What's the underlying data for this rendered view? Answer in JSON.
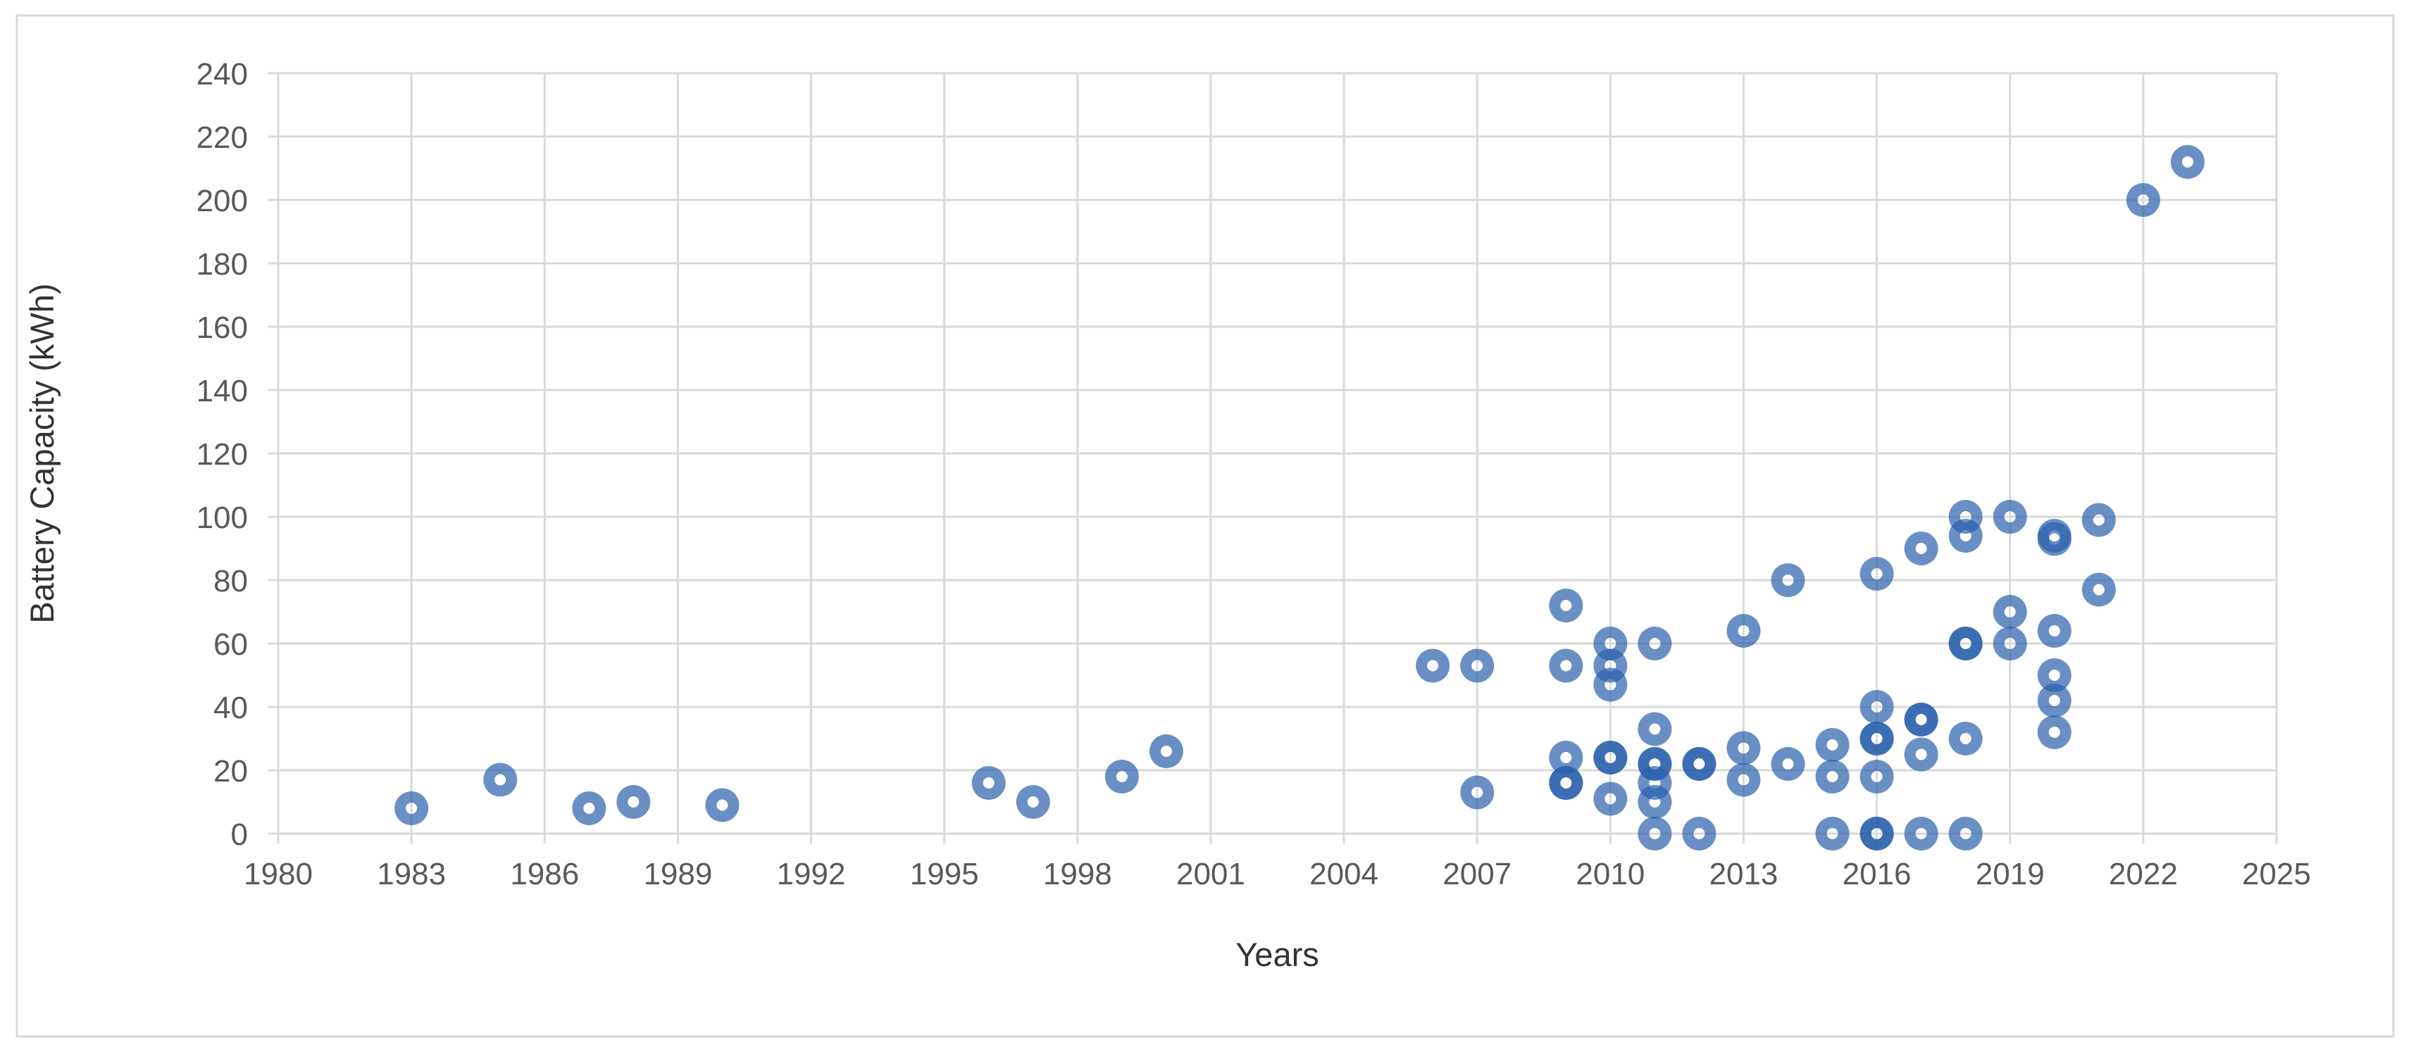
{
  "chart_data": {
    "type": "scatter",
    "title": "",
    "xlabel": "Years",
    "ylabel": "Battery Capacity (kWh)",
    "xlim": [
      1980,
      2025
    ],
    "ylim": [
      0,
      240
    ],
    "x_ticks": [
      1980,
      1983,
      1986,
      1989,
      1992,
      1995,
      1998,
      2001,
      2004,
      2007,
      2010,
      2013,
      2016,
      2019,
      2022,
      2025
    ],
    "y_ticks": [
      0,
      20,
      40,
      60,
      80,
      100,
      120,
      140,
      160,
      180,
      200,
      220,
      240
    ],
    "grid": true,
    "legend": false,
    "series_name": "Battery Capacity",
    "points": [
      [
        1983,
        8
      ],
      [
        1985,
        17
      ],
      [
        1987,
        8
      ],
      [
        1988,
        10
      ],
      [
        1990,
        9
      ],
      [
        1996,
        16
      ],
      [
        1997,
        10
      ],
      [
        1999,
        18
      ],
      [
        2000,
        26
      ],
      [
        2006,
        53
      ],
      [
        2007,
        53
      ],
      [
        2007,
        13
      ],
      [
        2009,
        72
      ],
      [
        2009,
        53
      ],
      [
        2009,
        24
      ],
      [
        2009,
        16
      ],
      [
        2009,
        16
      ],
      [
        2010,
        60
      ],
      [
        2010,
        53
      ],
      [
        2010,
        47
      ],
      [
        2010,
        24
      ],
      [
        2010,
        24
      ],
      [
        2010,
        11
      ],
      [
        2011,
        60
      ],
      [
        2011,
        33
      ],
      [
        2011,
        22
      ],
      [
        2011,
        22
      ],
      [
        2011,
        16
      ],
      [
        2011,
        10
      ],
      [
        2011,
        0
      ],
      [
        2012,
        22
      ],
      [
        2012,
        22
      ],
      [
        2012,
        0
      ],
      [
        2013,
        64
      ],
      [
        2013,
        27
      ],
      [
        2013,
        17
      ],
      [
        2014,
        80
      ],
      [
        2014,
        22
      ],
      [
        2015,
        28
      ],
      [
        2015,
        18
      ],
      [
        2015,
        0
      ],
      [
        2016,
        82
      ],
      [
        2016,
        40
      ],
      [
        2016,
        30
      ],
      [
        2016,
        30
      ],
      [
        2016,
        18
      ],
      [
        2016,
        0
      ],
      [
        2016,
        0
      ],
      [
        2017,
        90
      ],
      [
        2017,
        36
      ],
      [
        2017,
        36
      ],
      [
        2017,
        25
      ],
      [
        2017,
        0
      ],
      [
        2018,
        100
      ],
      [
        2018,
        94
      ],
      [
        2018,
        60
      ],
      [
        2018,
        60
      ],
      [
        2018,
        30
      ],
      [
        2018,
        0
      ],
      [
        2019,
        100
      ],
      [
        2019,
        70
      ],
      [
        2019,
        60
      ],
      [
        2020,
        94
      ],
      [
        2020,
        93
      ],
      [
        2020,
        64
      ],
      [
        2020,
        50
      ],
      [
        2020,
        42
      ],
      [
        2020,
        32
      ],
      [
        2021,
        99
      ],
      [
        2021,
        77
      ],
      [
        2022,
        200
      ],
      [
        2023,
        212
      ]
    ],
    "marker": {
      "shape": "circle-with-hole",
      "outer_radius": 24,
      "hole_radius": 8,
      "opacity": 0.7
    },
    "colors": {
      "marker": "#2A5FAC",
      "gridline": "#D9D9D9",
      "border": "#D9D9D9",
      "tick_text": "#595959",
      "axis_title_text": "#333333",
      "background": "#FFFFFF"
    },
    "layout": {
      "plot_left": 395,
      "plot_right": 3232,
      "plot_top": 104,
      "plot_bottom": 1184,
      "border_rect": [
        24,
        22,
        3374,
        1450
      ],
      "tick_stub": 14
    }
  }
}
